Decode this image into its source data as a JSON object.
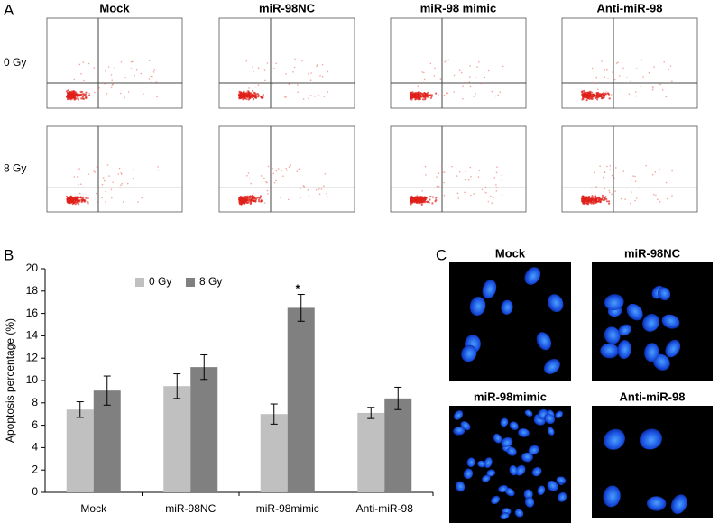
{
  "panel_a": {
    "label": "A",
    "columns": [
      "Mock",
      "miR-98NC",
      "miR-98 mimic",
      "Anti-miR-98"
    ],
    "rows": [
      "0 Gy",
      "8 Gy"
    ]
  },
  "chart_data": {
    "type": "bar",
    "panel_label": "B",
    "ylabel": "Apoptosis percentage (%)",
    "categories": [
      "Mock",
      "miR-98NC",
      "miR-98mimic",
      "Anti-miR-98"
    ],
    "series": [
      {
        "name": "0 Gy",
        "color": "#c0c0c0",
        "values": [
          7.4,
          9.5,
          7.0,
          7.1
        ],
        "errors": [
          0.7,
          1.1,
          0.9,
          0.5
        ]
      },
      {
        "name": "8 Gy",
        "color": "#808080",
        "values": [
          9.1,
          11.2,
          16.5,
          8.4
        ],
        "errors": [
          1.3,
          1.1,
          1.2,
          1.0
        ]
      }
    ],
    "ylim": [
      0,
      20
    ],
    "yticks": [
      0,
      2,
      4,
      6,
      8,
      10,
      12,
      14,
      16,
      18,
      20
    ],
    "annotation": "*",
    "legend": "top-left"
  },
  "panel_c": {
    "label": "C",
    "images": [
      "Mock",
      "miR-98NC",
      "miR-98mimic",
      "Anti-miR-98"
    ]
  }
}
